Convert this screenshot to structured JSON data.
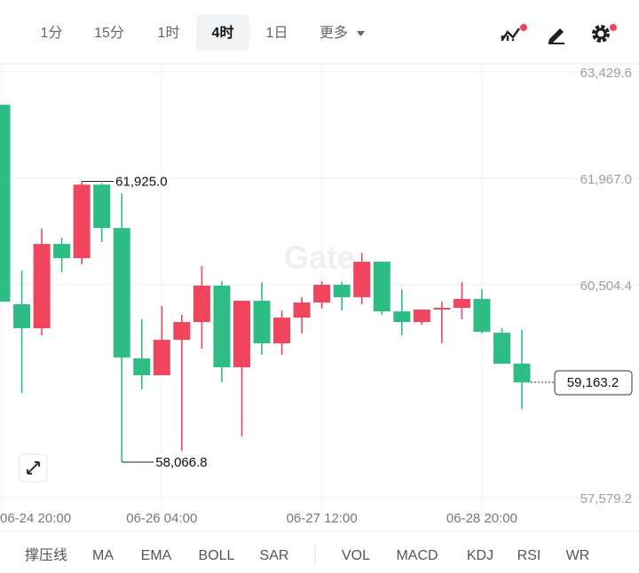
{
  "toolbar": {
    "intervals": [
      "1分",
      "15分",
      "1时",
      "4时",
      "1日"
    ],
    "active_index": 3,
    "more": "更多"
  },
  "chart_data": {
    "type": "candlestick",
    "watermark": "Gate",
    "up_color": "#f0455d",
    "down_color": "#2ebd85",
    "categories": [
      "06-24 20:00",
      null,
      null,
      null,
      null,
      null,
      null,
      null,
      "06-26 04:00",
      null,
      null,
      null,
      null,
      null,
      null,
      null,
      "06-27 12:00",
      null,
      null,
      null,
      null,
      null,
      null,
      null,
      "06-28 20:00",
      null,
      null
    ],
    "open": [
      62978,
      60236,
      59907,
      61065,
      60870,
      61880,
      61284,
      59492,
      59261,
      59748,
      59992,
      60492,
      59370,
      60284,
      59699,
      60053,
      60260,
      60504,
      60333,
      60821,
      60138,
      59992,
      60163,
      60187,
      60309,
      59845,
      59419
    ],
    "high": [
      62978,
      60699,
      61272,
      61150,
      61925.0,
      61900,
      61759,
      60029,
      60211,
      60090,
      60760,
      60553,
      60284,
      60540,
      60150,
      60333,
      60553,
      60540,
      60943,
      60821,
      60443,
      60163,
      60272,
      60540,
      60443,
      59907,
      59882
    ],
    "low": [
      60272,
      59017,
      59809,
      60675,
      60784,
      61089,
      58066.8,
      59066,
      59261,
      58224,
      59626,
      59163,
      58419,
      59541,
      59541,
      59834,
      60175,
      60150,
      60236,
      60090,
      59809,
      59955,
      59699,
      60029,
      59834,
      59419,
      58797
    ],
    "close": [
      60272,
      59907,
      61065,
      60870,
      61880,
      61284,
      59504,
      59261,
      59748,
      59992,
      60492,
      59370,
      60284,
      59699,
      60053,
      60260,
      60504,
      60333,
      60821,
      60138,
      59992,
      60163,
      60187,
      60309,
      59858,
      59419,
      59163.2
    ],
    "ylim": [
      57450,
      63540
    ],
    "yticks": [
      {
        "value": 63429.6,
        "label": "63,429.6"
      },
      {
        "value": 61967.0,
        "label": "61,967.0"
      },
      {
        "value": 60504.4,
        "label": "60,504.4"
      },
      {
        "value": 57579.2,
        "label": "57,579.2"
      }
    ],
    "grid": true,
    "annotations": [
      {
        "label": "61,925.0",
        "value": 61925.0,
        "index": 4
      },
      {
        "label": "58,066.8",
        "value": 58066.8,
        "index": 6
      }
    ],
    "last_price": {
      "label": "59,163.2",
      "value": 59163.2
    }
  },
  "indicators": [
    "撑压线",
    "MA",
    "EMA",
    "BOLL",
    "SAR",
    "VOL",
    "MACD",
    "KDJ",
    "RSI",
    "WR"
  ]
}
